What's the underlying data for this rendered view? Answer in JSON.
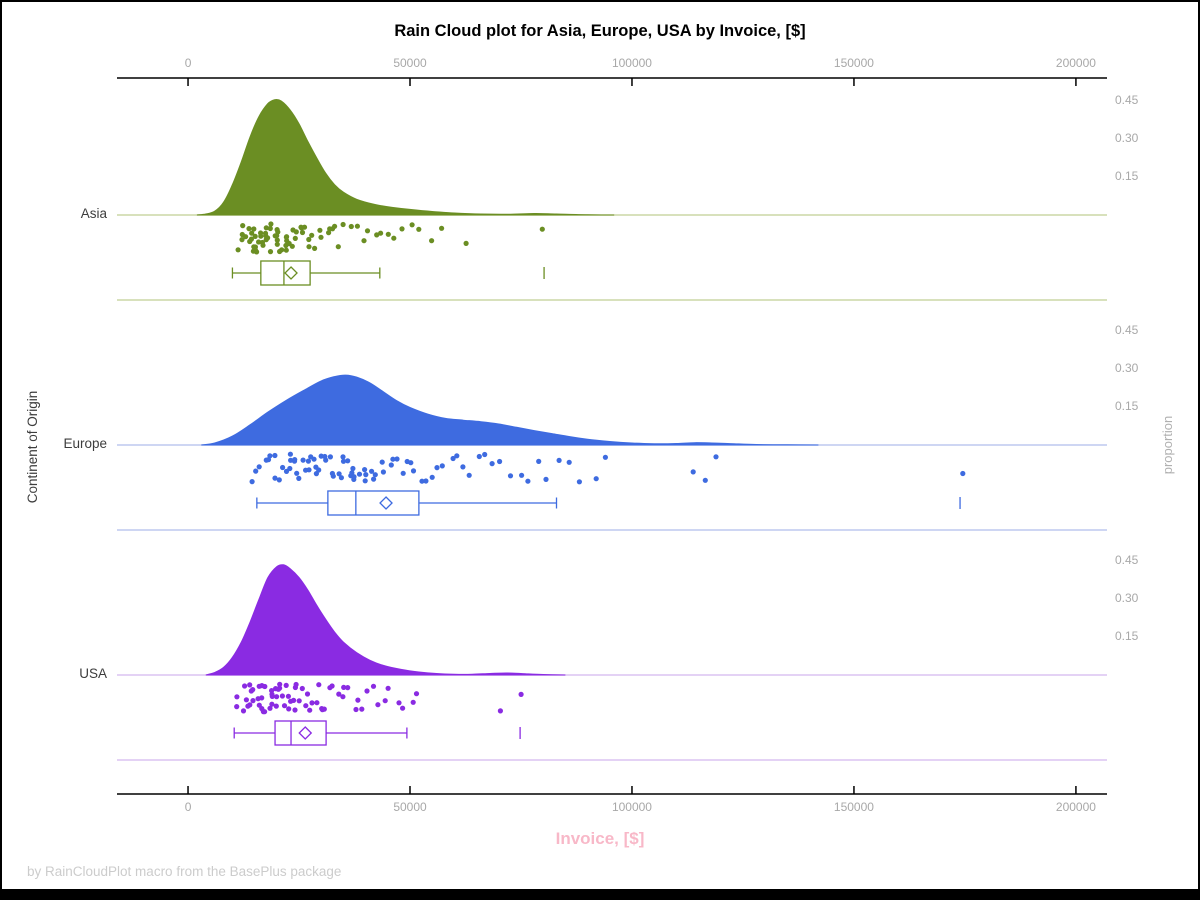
{
  "footer": "by RainCloudPlot macro from the BasePlus package",
  "chart_data": {
    "type": "raincloud (half-violin density + jittered strip + box plot)",
    "title": "Rain Cloud plot for Asia, Europe, USA by Invoice, [$]",
    "xlabel": "Invoice, [$]",
    "ylabel": "Continent of Origin",
    "ylabel_right": "proportion",
    "grid": false,
    "legend_position": "none",
    "x_range": [
      -16000,
      207000
    ],
    "x_ticks": [
      0,
      50000,
      100000,
      150000,
      200000
    ],
    "x_tick_labels": [
      "0",
      "50000",
      "100000",
      "150000",
      "200000"
    ],
    "proportion_ticks": [
      0.45,
      0.3,
      0.15
    ],
    "proportion_tick_labels": [
      "0.45",
      "0.30",
      "0.15"
    ],
    "colors": {
      "title": "#000000",
      "axis_line": "#000000",
      "tick_label": "#a8a8a8",
      "xlabel": "#f8b8c8",
      "footer": "#cccccc",
      "category_label": "#3d3d3d",
      "right_label": "#b0b0b0"
    },
    "groups": [
      {
        "name": "Asia",
        "color": "#6b8e23",
        "light_color": "#ccd7a6",
        "box": {
          "whisker_low": 10000,
          "q1": 16400,
          "median": 21600,
          "mean": 23200,
          "q3": 27500,
          "whisker_high": 43200,
          "outliers": [
            80200
          ]
        },
        "density": [
          [
            2000,
            0
          ],
          [
            4000,
            0.004
          ],
          [
            6000,
            0.015
          ],
          [
            8000,
            0.05
          ],
          [
            10000,
            0.12
          ],
          [
            12000,
            0.21
          ],
          [
            14000,
            0.31
          ],
          [
            16000,
            0.39
          ],
          [
            18000,
            0.44
          ],
          [
            19500,
            0.455
          ],
          [
            21000,
            0.45
          ],
          [
            23000,
            0.415
          ],
          [
            25000,
            0.36
          ],
          [
            27000,
            0.29
          ],
          [
            29000,
            0.225
          ],
          [
            31000,
            0.165
          ],
          [
            33000,
            0.12
          ],
          [
            35000,
            0.09
          ],
          [
            38000,
            0.062
          ],
          [
            42000,
            0.042
          ],
          [
            46000,
            0.03
          ],
          [
            50000,
            0.022
          ],
          [
            55000,
            0.014
          ],
          [
            60000,
            0.008
          ],
          [
            66000,
            0.004
          ],
          [
            72000,
            0.003
          ],
          [
            78000,
            0.006
          ],
          [
            83000,
            0.004
          ],
          [
            90000,
            0.001
          ],
          [
            96000,
            0
          ]
        ],
        "points": [
          11200,
          12000,
          12400,
          12800,
          13100,
          13300,
          13600,
          13900,
          14100,
          14400,
          14600,
          14900,
          15100,
          15300,
          15600,
          15800,
          16000,
          16300,
          16500,
          16800,
          17000,
          17200,
          17500,
          17700,
          18000,
          18200,
          18500,
          18700,
          19000,
          19200,
          19500,
          19800,
          20000,
          20300,
          20600,
          20900,
          21200,
          21500,
          21800,
          22100,
          22400,
          22700,
          23000,
          23400,
          23800,
          24200,
          24600,
          25000,
          25500,
          26000,
          26500,
          27000,
          27600,
          28200,
          28800,
          29500,
          30200,
          31000,
          31800,
          32600,
          33500,
          34500,
          35500,
          36500,
          37500,
          39000,
          40500,
          42000,
          43500,
          45000,
          46500,
          48000,
          50000,
          52000,
          54500,
          57000,
          62000,
          80200
        ]
      },
      {
        "name": "Europe",
        "color": "#3e6be0",
        "light_color": "#bdc9ef",
        "box": {
          "whisker_low": 15500,
          "q1": 31500,
          "median": 37800,
          "mean": 44600,
          "q3": 52000,
          "whisker_high": 83000,
          "outliers": [
            173900
          ]
        },
        "density": [
          [
            3000,
            0
          ],
          [
            6000,
            0.008
          ],
          [
            10000,
            0.035
          ],
          [
            14000,
            0.08
          ],
          [
            18000,
            0.13
          ],
          [
            22000,
            0.175
          ],
          [
            26000,
            0.215
          ],
          [
            30000,
            0.253
          ],
          [
            33000,
            0.27
          ],
          [
            35500,
            0.276
          ],
          [
            38000,
            0.268
          ],
          [
            41000,
            0.245
          ],
          [
            44000,
            0.21
          ],
          [
            47000,
            0.175
          ],
          [
            50000,
            0.148
          ],
          [
            54000,
            0.122
          ],
          [
            58000,
            0.105
          ],
          [
            62000,
            0.098
          ],
          [
            66000,
            0.092
          ],
          [
            70000,
            0.083
          ],
          [
            74000,
            0.07
          ],
          [
            78000,
            0.057
          ],
          [
            82000,
            0.045
          ],
          [
            86000,
            0.033
          ],
          [
            90000,
            0.023
          ],
          [
            95000,
            0.014
          ],
          [
            100000,
            0.008
          ],
          [
            105000,
            0.005
          ],
          [
            110000,
            0.006
          ],
          [
            114000,
            0.009
          ],
          [
            118000,
            0.008
          ],
          [
            123000,
            0.005
          ],
          [
            128000,
            0.002
          ],
          [
            135000,
            0.001
          ],
          [
            142000,
            0
          ]
        ],
        "points": [
          14000,
          15000,
          16000,
          17000,
          17800,
          18500,
          19200,
          20000,
          20600,
          21200,
          21800,
          22400,
          23000,
          23500,
          24000,
          24500,
          25000,
          25500,
          26000,
          26500,
          27000,
          27500,
          28000,
          28500,
          29000,
          29500,
          30000,
          30500,
          31000,
          31500,
          32000,
          32500,
          33000,
          33500,
          34000,
          34500,
          35000,
          35500,
          36000,
          36500,
          37000,
          37500,
          38000,
          38600,
          39200,
          39800,
          40500,
          41200,
          42000,
          42800,
          43600,
          44500,
          45400,
          46300,
          47200,
          48200,
          49200,
          50200,
          51300,
          52500,
          53700,
          55000,
          56300,
          57700,
          59100,
          60600,
          62100,
          63700,
          65300,
          67000,
          68800,
          70700,
          72600,
          74600,
          76700,
          78900,
          81200,
          83600,
          86100,
          88700,
          91400,
          94200,
          113500,
          116800,
          119500,
          173900
        ]
      },
      {
        "name": "USA",
        "color": "#8a2be2",
        "light_color": "#dcc3f2",
        "box": {
          "whisker_low": 10400,
          "q1": 19600,
          "median": 23200,
          "mean": 26400,
          "q3": 31100,
          "whisker_high": 49300,
          "outliers": [
            74800
          ]
        },
        "density": [
          [
            4000,
            0
          ],
          [
            6000,
            0.01
          ],
          [
            8000,
            0.03
          ],
          [
            10000,
            0.07
          ],
          [
            12000,
            0.13
          ],
          [
            14000,
            0.21
          ],
          [
            16000,
            0.3
          ],
          [
            18000,
            0.385
          ],
          [
            20000,
            0.428
          ],
          [
            21500,
            0.435
          ],
          [
            23000,
            0.42
          ],
          [
            25000,
            0.385
          ],
          [
            27000,
            0.335
          ],
          [
            29000,
            0.275
          ],
          [
            31000,
            0.22
          ],
          [
            33000,
            0.17
          ],
          [
            35000,
            0.13
          ],
          [
            38000,
            0.088
          ],
          [
            41000,
            0.058
          ],
          [
            44000,
            0.038
          ],
          [
            48000,
            0.022
          ],
          [
            52000,
            0.012
          ],
          [
            56000,
            0.006
          ],
          [
            60000,
            0.003
          ],
          [
            64000,
            0.003
          ],
          [
            68000,
            0.006
          ],
          [
            72000,
            0.008
          ],
          [
            76000,
            0.005
          ],
          [
            80000,
            0.002
          ],
          [
            85000,
            0
          ]
        ],
        "points": [
          10800,
          11500,
          12100,
          12600,
          13000,
          13400,
          13800,
          14100,
          14500,
          14800,
          15100,
          15400,
          15700,
          16000,
          16300,
          16600,
          16900,
          17200,
          17500,
          17800,
          18100,
          18400,
          18700,
          19000,
          19300,
          19600,
          19900,
          20200,
          20500,
          20800,
          21100,
          21400,
          21700,
          22000,
          22400,
          22800,
          23200,
          23600,
          24000,
          24400,
          24800,
          25200,
          25700,
          26200,
          26700,
          27200,
          27800,
          28400,
          29000,
          29600,
          30300,
          31000,
          31800,
          32600,
          33400,
          34300,
          35200,
          36200,
          37200,
          38300,
          39400,
          40600,
          41800,
          43000,
          44300,
          45700,
          47100,
          48600,
          50200,
          51800,
          70500,
          74500
        ]
      }
    ]
  }
}
